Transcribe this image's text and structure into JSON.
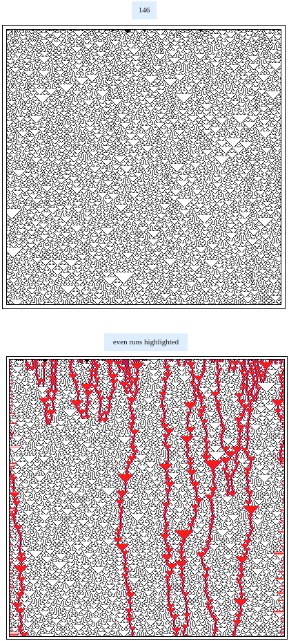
{
  "top_panel": {
    "caption": "146",
    "rule": 146
  },
  "bottom_panel": {
    "caption": "even runs highlighted",
    "rule": 146,
    "highlight_color": "#ff1a1a",
    "highlight_edge_color": "#6a1f8a"
  },
  "colors": {
    "caption_background": "#dfeefe",
    "cell_on": "#000000",
    "cell_off": "#ffffff",
    "frame": "#000000"
  }
}
